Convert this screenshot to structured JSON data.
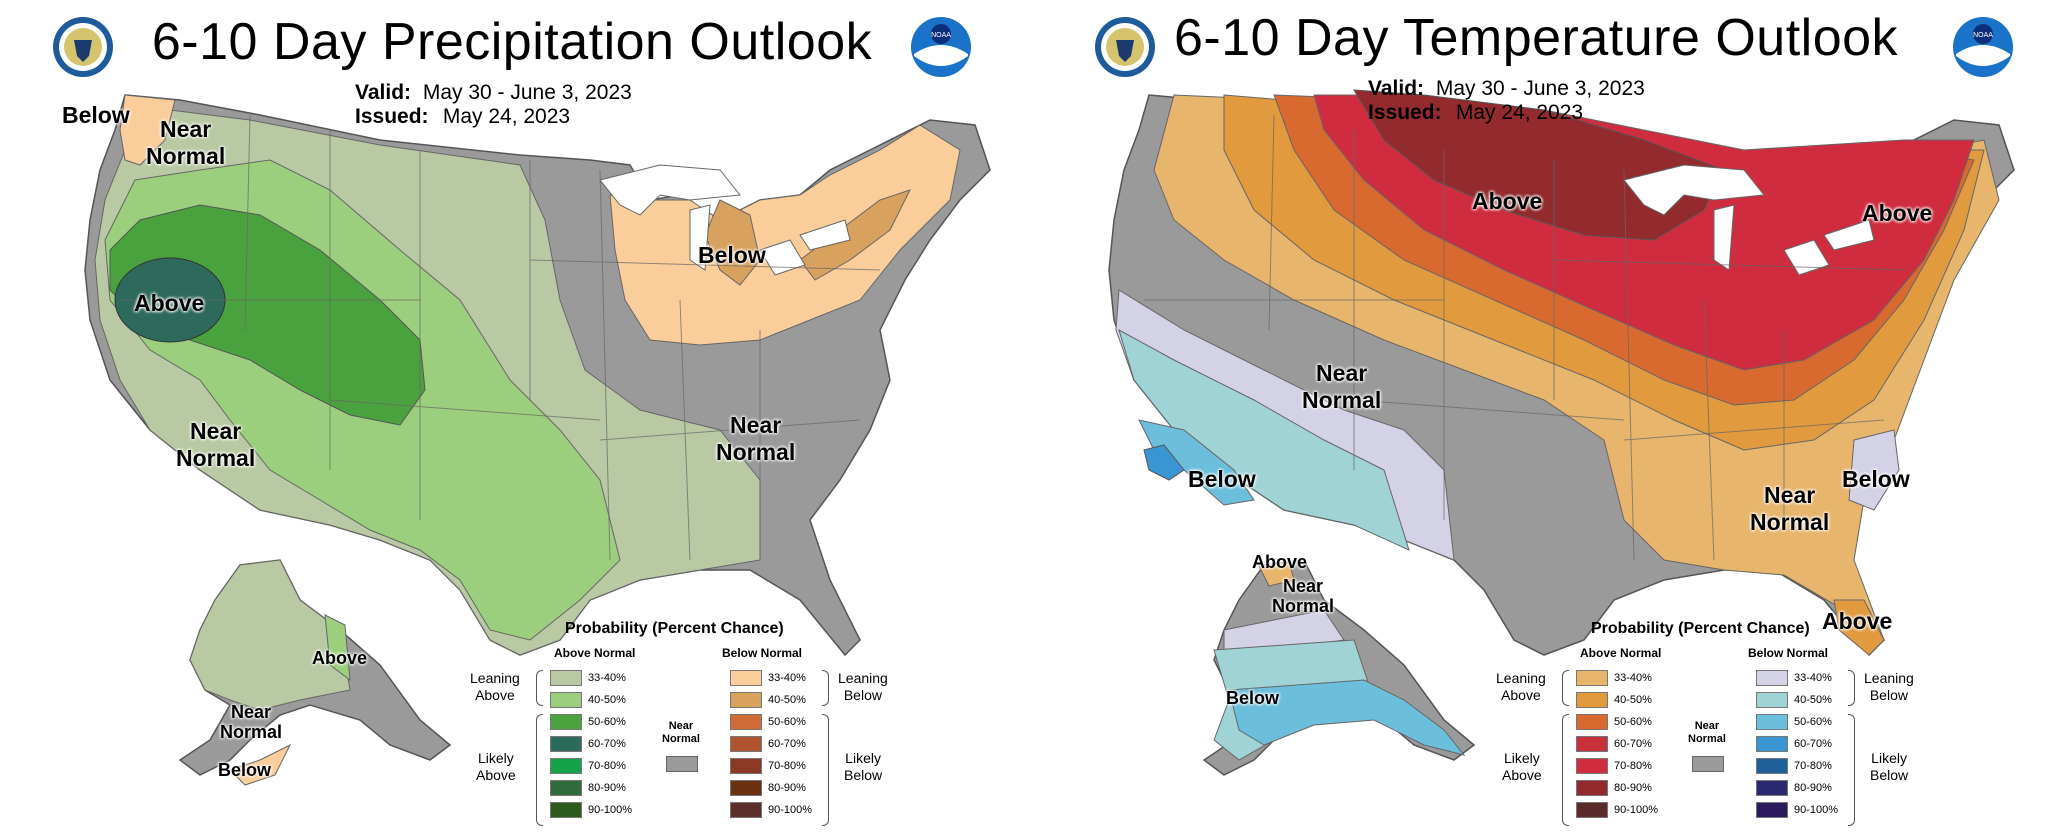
{
  "panels": {
    "precip": {
      "title": "6-10 Day Precipitation Outlook",
      "valid_label": "Valid:",
      "valid_value": "May 30 - June 3, 2023",
      "issued_label": "Issued:",
      "issued_value": "May 24, 2023",
      "map_labels": {
        "below_nw": "Below",
        "near_normal_nw_1": "Near",
        "near_normal_nw_2": "Normal",
        "above_west": "Above",
        "below_ne": "Below",
        "near_normal_sw_1": "Near",
        "near_normal_sw_2": "Normal",
        "near_normal_se_1": "Near",
        "near_normal_se_2": "Normal",
        "above_ak": "Above",
        "near_normal_ak_1": "Near",
        "near_normal_ak_2": "Normal",
        "below_ak": "Below"
      },
      "legend": {
        "title": "Probability (Percent Chance)",
        "above_header": "Above Normal",
        "below_header": "Below Normal",
        "leaning_above_1": "Leaning",
        "leaning_above_2": "Above",
        "likely_above_1": "Likely",
        "likely_above_2": "Above",
        "leaning_below_1": "Leaning",
        "leaning_below_2": "Below",
        "likely_below_1": "Likely",
        "likely_below_2": "Below",
        "near_1": "Near",
        "near_2": "Normal",
        "above_rows": [
          {
            "label": "33-40%",
            "color": "#b8c9a3"
          },
          {
            "label": "40-50%",
            "color": "#9ccf7d"
          },
          {
            "label": "50-60%",
            "color": "#4aa23e"
          },
          {
            "label": "60-70%",
            "color": "#2e6a5c"
          },
          {
            "label": "70-80%",
            "color": "#13a14a"
          },
          {
            "label": "80-90%",
            "color": "#2f6b3b"
          },
          {
            "label": "90-100%",
            "color": "#2d5b1e"
          }
        ],
        "below_rows": [
          {
            "label": "33-40%",
            "color": "#fbcd9b"
          },
          {
            "label": "40-50%",
            "color": "#d8a25e"
          },
          {
            "label": "50-60%",
            "color": "#cf6b35"
          },
          {
            "label": "60-70%",
            "color": "#b1532e"
          },
          {
            "label": "70-80%",
            "color": "#8c3a25"
          },
          {
            "label": "80-90%",
            "color": "#6a3010"
          },
          {
            "label": "90-100%",
            "color": "#5c2f2a"
          }
        ]
      }
    },
    "temp": {
      "title": "6-10 Day Temperature Outlook",
      "valid_label": "Valid:",
      "valid_value": "May 30 - June 3, 2023",
      "issued_label": "Issued:",
      "issued_value": "May 24, 2023",
      "map_labels": {
        "above_north": "Above",
        "above_ne": "Above",
        "near_normal_west_1": "Near",
        "near_normal_west_2": "Normal",
        "below_sw": "Below",
        "near_normal_se_1": "Near",
        "near_normal_se_2": "Normal",
        "below_se": "Below",
        "above_fl": "Above",
        "above_ak": "Above",
        "near_normal_ak_1": "Near",
        "near_normal_ak_2": "Normal",
        "below_ak": "Below"
      },
      "legend": {
        "title": "Probability (Percent Chance)",
        "above_header": "Above Normal",
        "below_header": "Below Normal",
        "leaning_above_1": "Leaning",
        "leaning_above_2": "Above",
        "likely_above_1": "Likely",
        "likely_above_2": "Above",
        "leaning_below_1": "Leaning",
        "leaning_below_2": "Below",
        "likely_below_1": "Likely",
        "likely_below_2": "Below",
        "near_1": "Near",
        "near_2": "Normal",
        "above_rows": [
          {
            "label": "33-40%",
            "color": "#e8b56c"
          },
          {
            "label": "40-50%",
            "color": "#e29a3f"
          },
          {
            "label": "50-60%",
            "color": "#d8692f"
          },
          {
            "label": "60-70%",
            "color": "#c8303a"
          },
          {
            "label": "70-80%",
            "color": "#cf2d3f"
          },
          {
            "label": "80-90%",
            "color": "#932b2e"
          },
          {
            "label": "90-100%",
            "color": "#5b2a2a"
          }
        ],
        "below_rows": [
          {
            "label": "33-40%",
            "color": "#d3d2e6"
          },
          {
            "label": "40-50%",
            "color": "#9fd3d6"
          },
          {
            "label": "50-60%",
            "color": "#6cbedd"
          },
          {
            "label": "60-70%",
            "color": "#3a95d3"
          },
          {
            "label": "70-80%",
            "color": "#1f5f9a"
          },
          {
            "label": "80-90%",
            "color": "#2b2a70"
          },
          {
            "label": "90-100%",
            "color": "#2b1a5e"
          }
        ]
      }
    }
  },
  "colors": {
    "near_normal": "#9a9a9a",
    "state_lines": "#666666"
  }
}
